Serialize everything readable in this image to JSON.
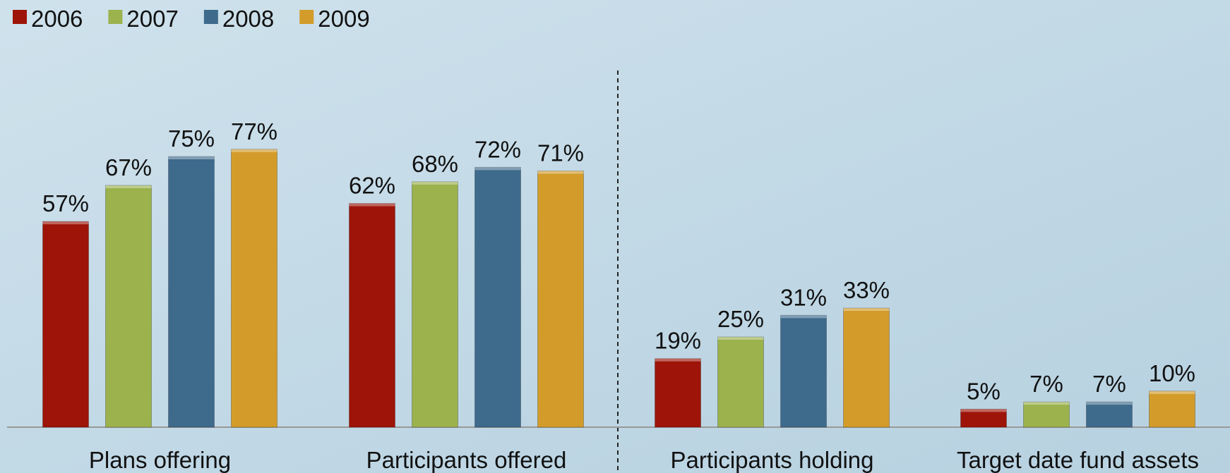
{
  "chart_data": {
    "type": "bar",
    "categories": [
      "Plans offering",
      "Participants offered",
      "Participants holding",
      "Target date fund assets"
    ],
    "series": [
      {
        "name": "2006",
        "color": "#9e1408",
        "values": [
          57,
          62,
          19,
          5
        ],
        "value_labels": [
          "57%",
          "62%",
          "19%",
          "5%"
        ]
      },
      {
        "name": "2007",
        "color": "#9bb24d",
        "values": [
          67,
          68,
          25,
          7
        ],
        "value_labels": [
          "67%",
          "68%",
          "25%",
          "7%"
        ]
      },
      {
        "name": "2008",
        "color": "#3e6a8c",
        "values": [
          75,
          72,
          31,
          7
        ],
        "value_labels": [
          "75%",
          "72%",
          "31%",
          "7%"
        ]
      },
      {
        "name": "2009",
        "color": "#d39c2a",
        "values": [
          77,
          71,
          33,
          10
        ],
        "value_labels": [
          "77%",
          "71%",
          "33%",
          "10%"
        ]
      }
    ],
    "legend": "top-left"
  }
}
